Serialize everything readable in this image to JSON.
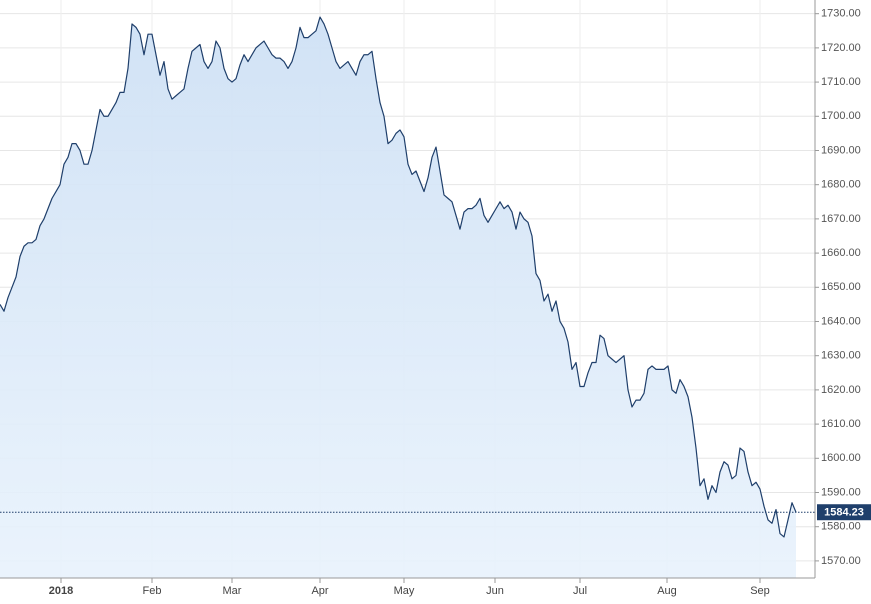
{
  "chart_data": {
    "type": "area",
    "color": "#1f3f6b",
    "fill": "#d6e6f7",
    "grid": true,
    "values": [
      1645,
      1643,
      1647,
      1650,
      1653,
      1659,
      1662,
      1663,
      1663,
      1664,
      1668,
      1670,
      1673,
      1676,
      1678,
      1680,
      1686,
      1688,
      1692,
      1692,
      1690,
      1686,
      1686,
      1690,
      1696,
      1702,
      1700,
      1700,
      1702,
      1704,
      1707,
      1707,
      1714,
      1727,
      1726,
      1724,
      1718,
      1724,
      1724,
      1718,
      1712,
      1716,
      1708,
      1705,
      1706,
      1707,
      1708,
      1714,
      1719,
      1720,
      1721,
      1716,
      1714,
      1716,
      1722,
      1720,
      1714,
      1711,
      1710,
      1711,
      1715,
      1718,
      1716,
      1718,
      1720,
      1721,
      1722,
      1720,
      1718,
      1717,
      1717,
      1716,
      1714,
      1716,
      1720,
      1726,
      1723,
      1723,
      1724,
      1725,
      1729,
      1727,
      1724,
      1720,
      1716,
      1714,
      1715,
      1716,
      1714,
      1712,
      1716,
      1718,
      1718,
      1719,
      1711,
      1704,
      1700,
      1692,
      1693,
      1695,
      1696,
      1694,
      1686,
      1683,
      1684,
      1681,
      1678,
      1682,
      1688,
      1691,
      1684,
      1677,
      1676,
      1675,
      1671,
      1667,
      1672,
      1673,
      1673,
      1674,
      1676,
      1671,
      1669,
      1671,
      1673,
      1675,
      1673,
      1674,
      1672,
      1667,
      1672,
      1670,
      1669,
      1665,
      1654,
      1652,
      1646,
      1648,
      1643,
      1646,
      1640,
      1638,
      1634,
      1626,
      1628,
      1621,
      1621,
      1625,
      1628,
      1628,
      1636,
      1635,
      1630,
      1629,
      1628,
      1629,
      1630,
      1620,
      1615,
      1617,
      1617,
      1619,
      1626,
      1627,
      1626,
      1626,
      1626,
      1627,
      1620,
      1619,
      1623,
      1621,
      1618,
      1612,
      1603,
      1592,
      1594,
      1588,
      1592,
      1590,
      1596,
      1599,
      1598,
      1594,
      1595,
      1603,
      1602,
      1596,
      1592,
      1593,
      1591,
      1586,
      1582,
      1581,
      1585,
      1578,
      1577,
      1582,
      1587,
      1584.23
    ],
    "xlim": [
      0,
      203.75
    ],
    "xticks": [
      {
        "value": 15.25,
        "label": "2018"
      },
      {
        "value": 38,
        "label": "Feb"
      },
      {
        "value": 58,
        "label": "Mar"
      },
      {
        "value": 80,
        "label": "Apr"
      },
      {
        "value": 101,
        "label": "May"
      },
      {
        "value": 123.75,
        "label": "Jun"
      },
      {
        "value": 145,
        "label": "Jul"
      },
      {
        "value": 166.75,
        "label": "Aug"
      },
      {
        "value": 190,
        "label": "Sep"
      }
    ],
    "ylim": [
      1565,
      1734
    ],
    "yticks": [
      {
        "value": 1570,
        "label": "1570.00"
      },
      {
        "value": 1580,
        "label": "1580.00"
      },
      {
        "value": 1590,
        "label": "1590.00"
      },
      {
        "value": 1600,
        "label": "1600.00"
      },
      {
        "value": 1610,
        "label": "1610.00"
      },
      {
        "value": 1620,
        "label": "1620.00"
      },
      {
        "value": 1630,
        "label": "1630.00"
      },
      {
        "value": 1640,
        "label": "1640.00"
      },
      {
        "value": 1650,
        "label": "1650.00"
      },
      {
        "value": 1660,
        "label": "1660.00"
      },
      {
        "value": 1670,
        "label": "1670.00"
      },
      {
        "value": 1680,
        "label": "1680.00"
      },
      {
        "value": 1690,
        "label": "1690.00"
      },
      {
        "value": 1700,
        "label": "1700.00"
      },
      {
        "value": 1710,
        "label": "1710.00"
      },
      {
        "value": 1720,
        "label": "1720.00"
      },
      {
        "value": 1730,
        "label": "1730.00"
      }
    ]
  }
}
